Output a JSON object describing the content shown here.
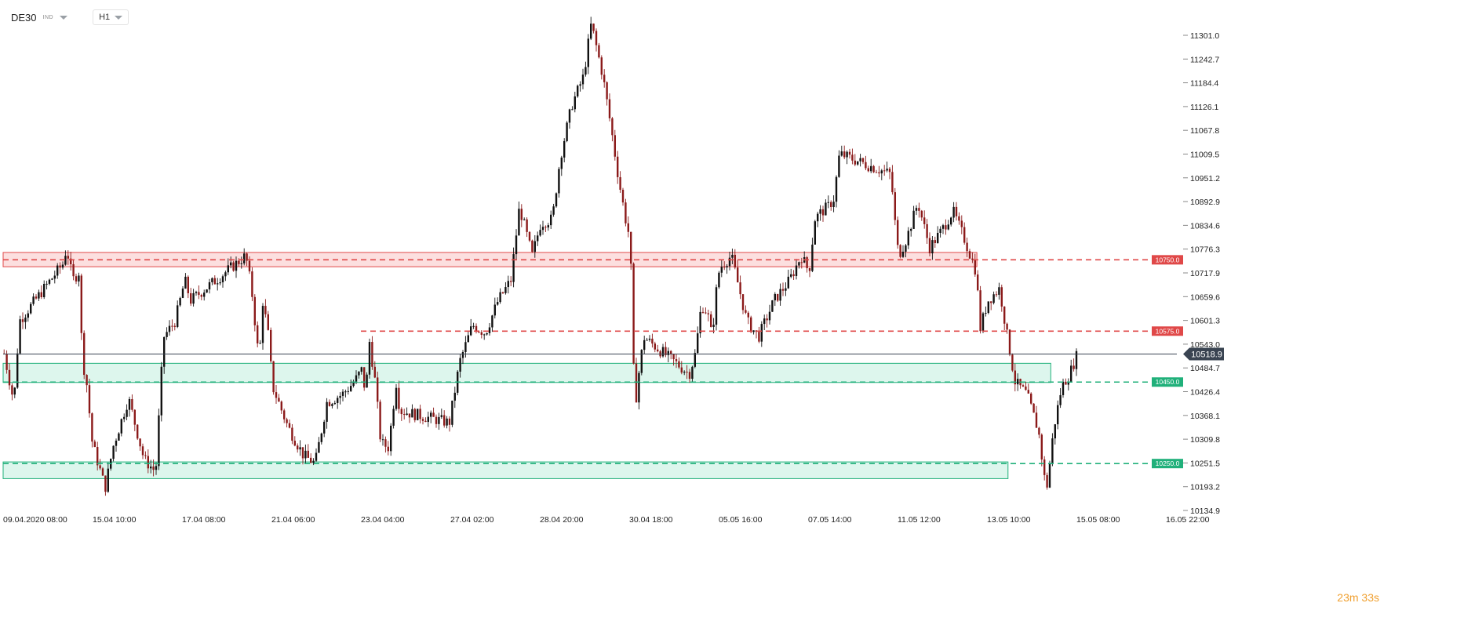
{
  "header": {
    "symbol": "DE30",
    "symbol_sub": "IND",
    "timeframe": "H1"
  },
  "timer": {
    "minutes": "23",
    "m_unit": "m",
    "seconds": "33",
    "s_unit": "s"
  },
  "colors": {
    "up": "#111111",
    "down": "#8b1a1a",
    "resistance": "#e04848",
    "resistance_fill": "#fbd9d9",
    "support": "#20b07a",
    "support_fill": "#d7f4ea",
    "current_price_bg": "#3a4452"
  },
  "chart_data": {
    "type": "candlestick",
    "symbol": "DE30",
    "timeframe": "H1",
    "ylim": [
      10134.9,
      11359.3
    ],
    "y_ticks": [
      11301.0,
      11242.7,
      11184.4,
      11126.1,
      11067.8,
      11009.5,
      10951.2,
      10892.9,
      10834.6,
      10776.3,
      10717.9,
      10659.6,
      10601.3,
      10543.0,
      10484.7,
      10426.4,
      10368.1,
      10309.8,
      10251.5,
      10193.2,
      10134.9
    ],
    "x_ticks": [
      "09.04.2020  08:00",
      "15.04  10:00",
      "17.04  08:00",
      "21.04  06:00",
      "23.04  04:00",
      "27.04  02:00",
      "28.04  20:00",
      "30.04  18:00",
      "05.05  16:00",
      "07.05  14:00",
      "11.05  12:00",
      "13.05  10:00",
      "15.05  08:00",
      "16.05  22:00"
    ],
    "current_price": 10518.9,
    "levels": [
      {
        "label": "10750.0",
        "value": 10750.0,
        "kind": "resistance",
        "zone": [
          10733,
          10768
        ],
        "zone_start": "09.04.2020 08:00",
        "zone_end": "13.05 04:00"
      },
      {
        "label": "10575.0",
        "value": 10575.0,
        "kind": "resistance",
        "zone": null,
        "line_start": "23.04 04:00"
      },
      {
        "label": "10450.0",
        "value": 10450.0,
        "kind": "support",
        "zone": [
          10449,
          10496
        ],
        "zone_start": "09.04.2020 08:00",
        "zone_end": "14.05 18:00"
      },
      {
        "label": "10250.0",
        "value": 10250.0,
        "kind": "support",
        "zone": [
          10213,
          10254
        ],
        "zone_start": "09.04.2020 08:00",
        "zone_end": "13.05 20:00"
      }
    ],
    "price_path": [
      [
        "09.04.2020 08:00",
        10520
      ],
      [
        "10.04 00:00",
        10400
      ],
      [
        "10.04 09:00",
        10600
      ],
      [
        "13.04 08:00",
        10740
      ],
      [
        "13.04 14:00",
        10780
      ],
      [
        "14.04 00:00",
        10700
      ],
      [
        "14.04 10:00",
        10720
      ],
      [
        "14.04 16:00",
        10500
      ],
      [
        "14.04 22:00",
        10460
      ],
      [
        "15.04 08:00",
        10300
      ],
      [
        "15.04 16:00",
        10190
      ],
      [
        "15.04 20:00",
        10290
      ],
      [
        "16.04 04:00",
        10410
      ],
      [
        "16.04 12:00",
        10260
      ],
      [
        "16.04 18:00",
        10230
      ],
      [
        "16.04 22:00",
        10560
      ],
      [
        "17.04 04:00",
        10600
      ],
      [
        "17.04 10:00",
        10700
      ],
      [
        "17.04 16:00",
        10650
      ],
      [
        "20.04 02:00",
        10760
      ],
      [
        "20.04 08:00",
        10680
      ],
      [
        "20.04 16:00",
        10500
      ],
      [
        "20.04 20:00",
        10650
      ],
      [
        "21.04 02:00",
        10560
      ],
      [
        "21.04 06:00",
        10440
      ],
      [
        "21.04 14:00",
        10340
      ],
      [
        "21.04 22:00",
        10270
      ],
      [
        "22.04 04:00",
        10250
      ],
      [
        "22.04 10:00",
        10400
      ],
      [
        "22.04 18:00",
        10420
      ],
      [
        "23.04 00:00",
        10450
      ],
      [
        "23.04 04:00",
        10480
      ],
      [
        "23.04 08:00",
        10420
      ],
      [
        "23.04 12:00",
        10550
      ],
      [
        "23.04 18:00",
        10450
      ],
      [
        "24.04 00:00",
        10300
      ],
      [
        "24.04 08:00",
        10290
      ],
      [
        "24.04 16:00",
        10450
      ],
      [
        "24.04 20:00",
        10380
      ],
      [
        "27.04 00:00",
        10350
      ],
      [
        "27.04 06:00",
        10500
      ],
      [
        "27.04 12:00",
        10590
      ],
      [
        "27.04 18:00",
        10570
      ],
      [
        "28.04 00:00",
        10650
      ],
      [
        "28.04 06:00",
        10700
      ],
      [
        "28.04 10:00",
        10880
      ],
      [
        "28.04 16:00",
        10760
      ],
      [
        "28.04 20:00",
        10840
      ],
      [
        "29.04 02:00",
        10850
      ],
      [
        "29.04 06:00",
        11000
      ],
      [
        "29.04 12:00",
        11130
      ],
      [
        "29.04 18:00",
        11200
      ],
      [
        "29.04 22:00",
        11330
      ],
      [
        "30.04 04:00",
        11200
      ],
      [
        "30.04 08:00",
        11080
      ],
      [
        "30.04 12:00",
        10950
      ],
      [
        "30.04 16:00",
        10840
      ],
      [
        "30.04 18:00",
        10800
      ],
      [
        "01.05 00:00",
        10380
      ],
      [
        "01.05 06:00",
        10480
      ],
      [
        "01.05 12:00",
        10560
      ],
      [
        "04.05 00:00",
        10470
      ],
      [
        "04.05 08:00",
        10520
      ],
      [
        "04.05 16:00",
        10640
      ],
      [
        "05.05 00:00",
        10620
      ],
      [
        "05.05 06:00",
        10560
      ],
      [
        "05.05 12:00",
        10680
      ],
      [
        "05.05 16:00",
        10730
      ],
      [
        "05.05 22:00",
        10760
      ],
      [
        "06.05 06:00",
        10600
      ],
      [
        "06.05 12:00",
        10560
      ],
      [
        "06.05 20:00",
        10650
      ],
      [
        "07.05 04:00",
        10700
      ],
      [
        "07.05 10:00",
        10760
      ],
      [
        "07.05 14:00",
        10720
      ],
      [
        "07.05 20:00",
        10850
      ],
      [
        "08.05 04:00",
        10870
      ],
      [
        "08.05 10:00",
        10880
      ],
      [
        "08.05 16:00",
        10900
      ],
      [
        "08.05 22:00",
        11010
      ],
      [
        "11.05 04:00",
        10960
      ],
      [
        "11.05 08:00",
        10850
      ],
      [
        "11.05 12:00",
        10760
      ],
      [
        "11.05 16:00",
        10800
      ],
      [
        "11.05 22:00",
        10890
      ],
      [
        "12.05 04:00",
        10780
      ],
      [
        "12.05 10:00",
        10820
      ],
      [
        "12.05 16:00",
        10870
      ],
      [
        "12.05 22:00",
        10800
      ],
      [
        "13.05 04:00",
        10720
      ],
      [
        "13.05 06:00",
        10580
      ],
      [
        "13.05 10:00",
        10650
      ],
      [
        "13.05 16:00",
        10680
      ],
      [
        "13.05 20:00",
        10560
      ],
      [
        "14.05 00:00",
        10450
      ],
      [
        "14.05 06:00",
        10420
      ],
      [
        "14.05 12:00",
        10330
      ],
      [
        "14.05 16:00",
        10180
      ],
      [
        "14.05 20:00",
        10340
      ],
      [
        "15.05 00:00",
        10440
      ],
      [
        "15.05 04:00",
        10470
      ],
      [
        "15.05 08:00",
        10518.9
      ]
    ]
  }
}
